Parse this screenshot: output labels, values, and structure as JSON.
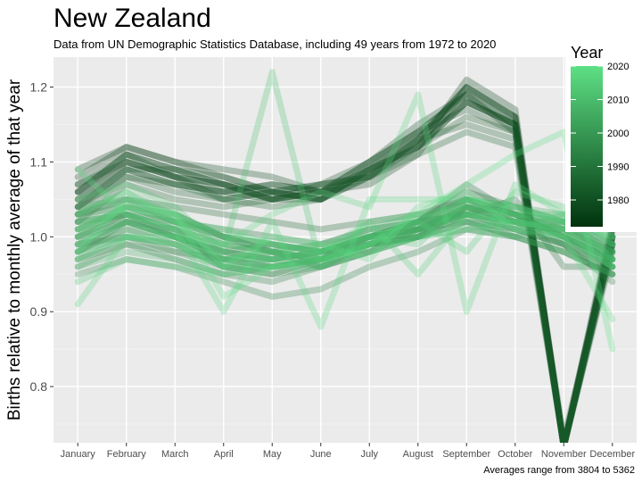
{
  "chart_data": {
    "type": "line",
    "title": "New Zealand",
    "subtitle": "Data from UN Demographic Statistics Database, including 49 years from 1972 to 2020",
    "caption": "Averages range from 3804 to 5362",
    "xlabel": "",
    "ylabel": "Births relative to monthly average of that year",
    "categories": [
      "January",
      "February",
      "March",
      "April",
      "May",
      "June",
      "July",
      "August",
      "September",
      "October",
      "November",
      "December"
    ],
    "ylim": [
      0.725,
      1.24
    ],
    "yticks": [
      0.8,
      0.9,
      1.0,
      1.1,
      1.2
    ],
    "ytick_labels": [
      "0.8",
      "0.9",
      "1.0",
      "1.1",
      "1.2"
    ],
    "grid": true,
    "legend": {
      "title": "Year",
      "position": "top-right",
      "ticks": [
        1980,
        1990,
        2000,
        2010,
        2020
      ],
      "range": [
        1972,
        2020
      ],
      "color_low": "#00330d",
      "color_high": "#5ee085"
    },
    "series": [
      {
        "year": 1972,
        "values": [
          1.06,
          1.1,
          1.08,
          1.07,
          1.05,
          1.06,
          1.09,
          1.12,
          1.18,
          1.15,
          0.72,
          1.0
        ]
      },
      {
        "year": 1973,
        "values": [
          1.08,
          1.12,
          1.1,
          1.08,
          1.06,
          1.05,
          1.08,
          1.13,
          1.2,
          1.16,
          0.72,
          1.01
        ]
      },
      {
        "year": 1974,
        "values": [
          1.04,
          1.09,
          1.07,
          1.06,
          1.07,
          1.06,
          1.1,
          1.14,
          1.19,
          1.14,
          0.72,
          0.99
        ]
      },
      {
        "year": 1975,
        "values": [
          1.07,
          1.11,
          1.09,
          1.07,
          1.05,
          1.07,
          1.08,
          1.12,
          1.21,
          1.17,
          0.72,
          1.02
        ]
      },
      {
        "year": 1976,
        "values": [
          1.05,
          1.1,
          1.08,
          1.05,
          1.06,
          1.05,
          1.09,
          1.13,
          1.18,
          1.15,
          0.72,
          1.0
        ]
      },
      {
        "year": 1977,
        "values": [
          1.09,
          1.12,
          1.1,
          1.09,
          1.08,
          1.06,
          1.07,
          1.11,
          1.2,
          1.16,
          0.72,
          1.01
        ]
      },
      {
        "year": 1978,
        "values": [
          1.06,
          1.11,
          1.09,
          1.07,
          1.06,
          1.07,
          1.1,
          1.15,
          1.19,
          1.15,
          0.73,
          1.0
        ]
      },
      {
        "year": 1979,
        "values": [
          1.04,
          1.08,
          1.07,
          1.06,
          1.05,
          1.05,
          1.09,
          1.14,
          1.17,
          1.14,
          0.72,
          0.99
        ]
      },
      {
        "year": 1980,
        "values": [
          1.07,
          1.1,
          1.08,
          1.06,
          1.07,
          1.06,
          1.08,
          1.13,
          1.2,
          1.16,
          0.72,
          1.0
        ]
      },
      {
        "year": 1981,
        "values": [
          1.05,
          1.09,
          1.09,
          1.08,
          1.06,
          1.05,
          1.09,
          1.12,
          1.18,
          1.15,
          0.72,
          1.01
        ]
      },
      {
        "year": 1982,
        "values": [
          1.06,
          1.11,
          1.08,
          1.07,
          1.05,
          1.06,
          1.1,
          1.14,
          1.19,
          1.15,
          0.72,
          0.99
        ]
      },
      {
        "year": 1983,
        "values": [
          1.03,
          1.08,
          1.06,
          1.05,
          1.06,
          1.07,
          1.08,
          1.12,
          1.16,
          1.14,
          0.72,
          1.0
        ]
      },
      {
        "year": 1984,
        "values": [
          1.02,
          1.07,
          1.05,
          1.04,
          1.05,
          1.06,
          1.09,
          1.13,
          1.15,
          1.13,
          0.72,
          0.98
        ]
      },
      {
        "year": 1985,
        "values": [
          1.04,
          1.09,
          1.07,
          1.05,
          1.04,
          1.05,
          1.08,
          1.11,
          1.14,
          1.12,
          0.72,
          0.99
        ]
      },
      {
        "year": 1986,
        "values": [
          1.03,
          1.05,
          1.04,
          1.03,
          1.02,
          1.01,
          1.02,
          1.03,
          1.05,
          1.03,
          1.0,
          0.97
        ]
      },
      {
        "year": 1987,
        "values": [
          1.0,
          1.03,
          1.02,
          1.01,
          1.0,
          0.99,
          1.01,
          1.02,
          1.06,
          1.04,
          1.02,
          0.98
        ]
      },
      {
        "year": 1988,
        "values": [
          0.98,
          1.02,
          1.01,
          0.96,
          0.95,
          0.97,
          1.0,
          1.01,
          1.03,
          1.05,
          0.96,
          0.96
        ]
      },
      {
        "year": 1989,
        "values": [
          1.01,
          1.04,
          1.03,
          1.0,
          0.98,
          0.96,
          0.99,
          1.02,
          1.07,
          1.03,
          1.01,
          0.97
        ]
      },
      {
        "year": 1990,
        "values": [
          0.99,
          1.0,
          0.98,
          0.97,
          0.96,
          0.97,
          0.99,
          1.0,
          1.04,
          1.02,
          0.99,
          0.95
        ]
      },
      {
        "year": 1991,
        "values": [
          1.02,
          1.03,
          1.0,
          0.98,
          0.99,
          0.98,
          1.0,
          1.01,
          1.05,
          1.03,
          1.0,
          0.96
        ]
      },
      {
        "year": 1992,
        "values": [
          0.97,
          0.99,
          0.97,
          0.95,
          0.94,
          0.96,
          0.98,
          1.0,
          1.02,
          1.01,
          0.99,
          0.94
        ]
      },
      {
        "year": 1993,
        "values": [
          0.95,
          0.97,
          0.96,
          0.94,
          0.92,
          0.93,
          0.96,
          0.98,
          1.01,
          1.0,
          0.98,
          0.95
        ]
      },
      {
        "year": 1994,
        "values": [
          1.0,
          1.02,
          1.0,
          0.98,
          0.97,
          0.98,
          0.99,
          1.01,
          1.04,
          1.02,
          1.0,
          0.97
        ]
      },
      {
        "year": 1995,
        "values": [
          0.98,
          1.01,
          0.99,
          0.97,
          0.96,
          0.97,
          1.0,
          1.02,
          1.03,
          1.01,
          0.99,
          0.96
        ]
      },
      {
        "year": 1996,
        "values": [
          1.01,
          1.03,
          1.01,
          0.99,
          0.98,
          0.97,
          0.99,
          1.0,
          1.03,
          1.02,
          1.01,
          0.98
        ]
      },
      {
        "year": 1997,
        "values": [
          0.96,
          0.99,
          0.98,
          0.96,
          0.95,
          0.96,
          0.98,
          1.01,
          1.02,
          1.0,
          0.98,
          0.95
        ]
      },
      {
        "year": 1998,
        "values": [
          1.03,
          1.04,
          1.02,
          1.0,
          0.99,
          0.98,
          1.0,
          1.01,
          1.04,
          1.03,
          1.02,
          0.99
        ]
      },
      {
        "year": 1999,
        "values": [
          0.99,
          1.02,
          1.0,
          0.97,
          0.97,
          0.98,
          1.0,
          1.02,
          1.05,
          1.03,
          1.0,
          0.97
        ]
      },
      {
        "year": 2000,
        "values": [
          1.02,
          1.05,
          1.02,
          1.0,
          0.98,
          0.97,
          0.99,
          1.0,
          1.04,
          1.02,
          1.01,
          0.98
        ]
      },
      {
        "year": 2001,
        "values": [
          0.97,
          1.0,
          0.99,
          0.96,
          0.96,
          0.97,
          0.99,
          1.01,
          1.03,
          1.01,
          0.99,
          0.96
        ]
      },
      {
        "year": 2002,
        "values": [
          1.0,
          1.03,
          1.01,
          0.98,
          0.97,
          0.96,
          0.98,
          1.0,
          1.02,
          1.0,
          1.02,
          0.99
        ]
      },
      {
        "year": 2003,
        "values": [
          0.98,
          1.01,
          1.0,
          0.97,
          0.98,
          0.99,
          1.01,
          1.02,
          1.03,
          1.02,
          1.0,
          0.96
        ]
      },
      {
        "year": 2004,
        "values": [
          1.04,
          1.05,
          1.03,
          1.0,
          0.99,
          0.98,
          1.0,
          1.02,
          1.05,
          1.04,
          1.03,
          1.0
        ]
      },
      {
        "year": 2005,
        "values": [
          0.96,
          0.98,
          0.97,
          0.95,
          0.96,
          0.97,
          0.99,
          1.0,
          1.01,
          1.0,
          0.98,
          0.95
        ]
      },
      {
        "year": 2006,
        "values": [
          1.01,
          1.04,
          1.02,
          0.99,
          0.98,
          0.97,
          0.99,
          1.01,
          1.04,
          1.03,
          1.01,
          0.98
        ]
      },
      {
        "year": 2007,
        "values": [
          0.99,
          1.02,
          1.0,
          0.98,
          0.97,
          0.98,
          1.0,
          1.02,
          1.03,
          1.02,
          1.02,
          0.97
        ]
      },
      {
        "year": 2008,
        "values": [
          1.03,
          1.06,
          1.03,
          1.0,
          0.99,
          0.98,
          1.0,
          1.01,
          1.04,
          1.03,
          1.0,
          0.97
        ]
      },
      {
        "year": 2009,
        "values": [
          0.98,
          1.0,
          0.99,
          0.96,
          0.97,
          0.98,
          1.01,
          1.03,
          1.02,
          1.01,
          1.03,
          0.99
        ]
      },
      {
        "year": 2010,
        "values": [
          1.02,
          1.03,
          1.01,
          0.99,
          0.98,
          0.99,
          1.0,
          1.02,
          1.05,
          1.04,
          1.02,
          0.98
        ]
      },
      {
        "year": 2011,
        "values": [
          0.99,
          1.02,
          1.0,
          0.97,
          0.98,
          0.97,
          0.99,
          1.01,
          1.03,
          1.02,
          1.01,
          0.97
        ]
      },
      {
        "year": 2012,
        "values": [
          1.05,
          1.07,
          1.04,
          0.98,
          1.22,
          0.96,
          1.02,
          1.03,
          1.04,
          1.03,
          1.02,
          1.0
        ]
      },
      {
        "year": 2013,
        "values": [
          0.94,
          0.97,
          0.96,
          0.95,
          0.96,
          0.97,
          0.98,
          1.0,
          1.01,
          1.02,
          1.0,
          0.96
        ]
      },
      {
        "year": 2014,
        "values": [
          1.0,
          1.04,
          1.02,
          0.97,
          0.97,
          0.98,
          1.0,
          0.99,
          1.05,
          1.03,
          1.03,
          0.97
        ]
      },
      {
        "year": 2015,
        "values": [
          0.97,
          1.0,
          0.99,
          0.96,
          0.96,
          0.96,
          0.99,
          1.02,
          0.98,
          1.06,
          1.04,
          0.99
        ]
      },
      {
        "year": 2016,
        "values": [
          1.03,
          1.06,
          1.02,
          1.01,
          0.99,
          0.98,
          1.02,
          0.95,
          1.03,
          1.02,
          1.01,
          0.96
        ]
      },
      {
        "year": 2017,
        "values": [
          0.91,
          1.0,
          1.0,
          0.99,
          1.03,
          1.06,
          1.04,
          1.19,
          0.9,
          1.07,
          1.03,
          1.0
        ]
      },
      {
        "year": 2018,
        "values": [
          1.09,
          1.03,
          1.01,
          0.9,
          1.02,
          0.88,
          1.05,
          1.05,
          1.05,
          1.04,
          1.02,
          1.01
        ]
      },
      {
        "year": 2019,
        "values": [
          1.01,
          1.04,
          1.03,
          0.96,
          1.0,
          0.99,
          0.97,
          1.04,
          1.06,
          1.01,
          1.0,
          0.89
        ]
      },
      {
        "year": 2020,
        "values": [
          0.98,
          1.05,
          1.03,
          0.92,
          0.96,
          0.97,
          0.99,
          1.03,
          1.07,
          1.11,
          1.14,
          0.85
        ]
      }
    ]
  }
}
